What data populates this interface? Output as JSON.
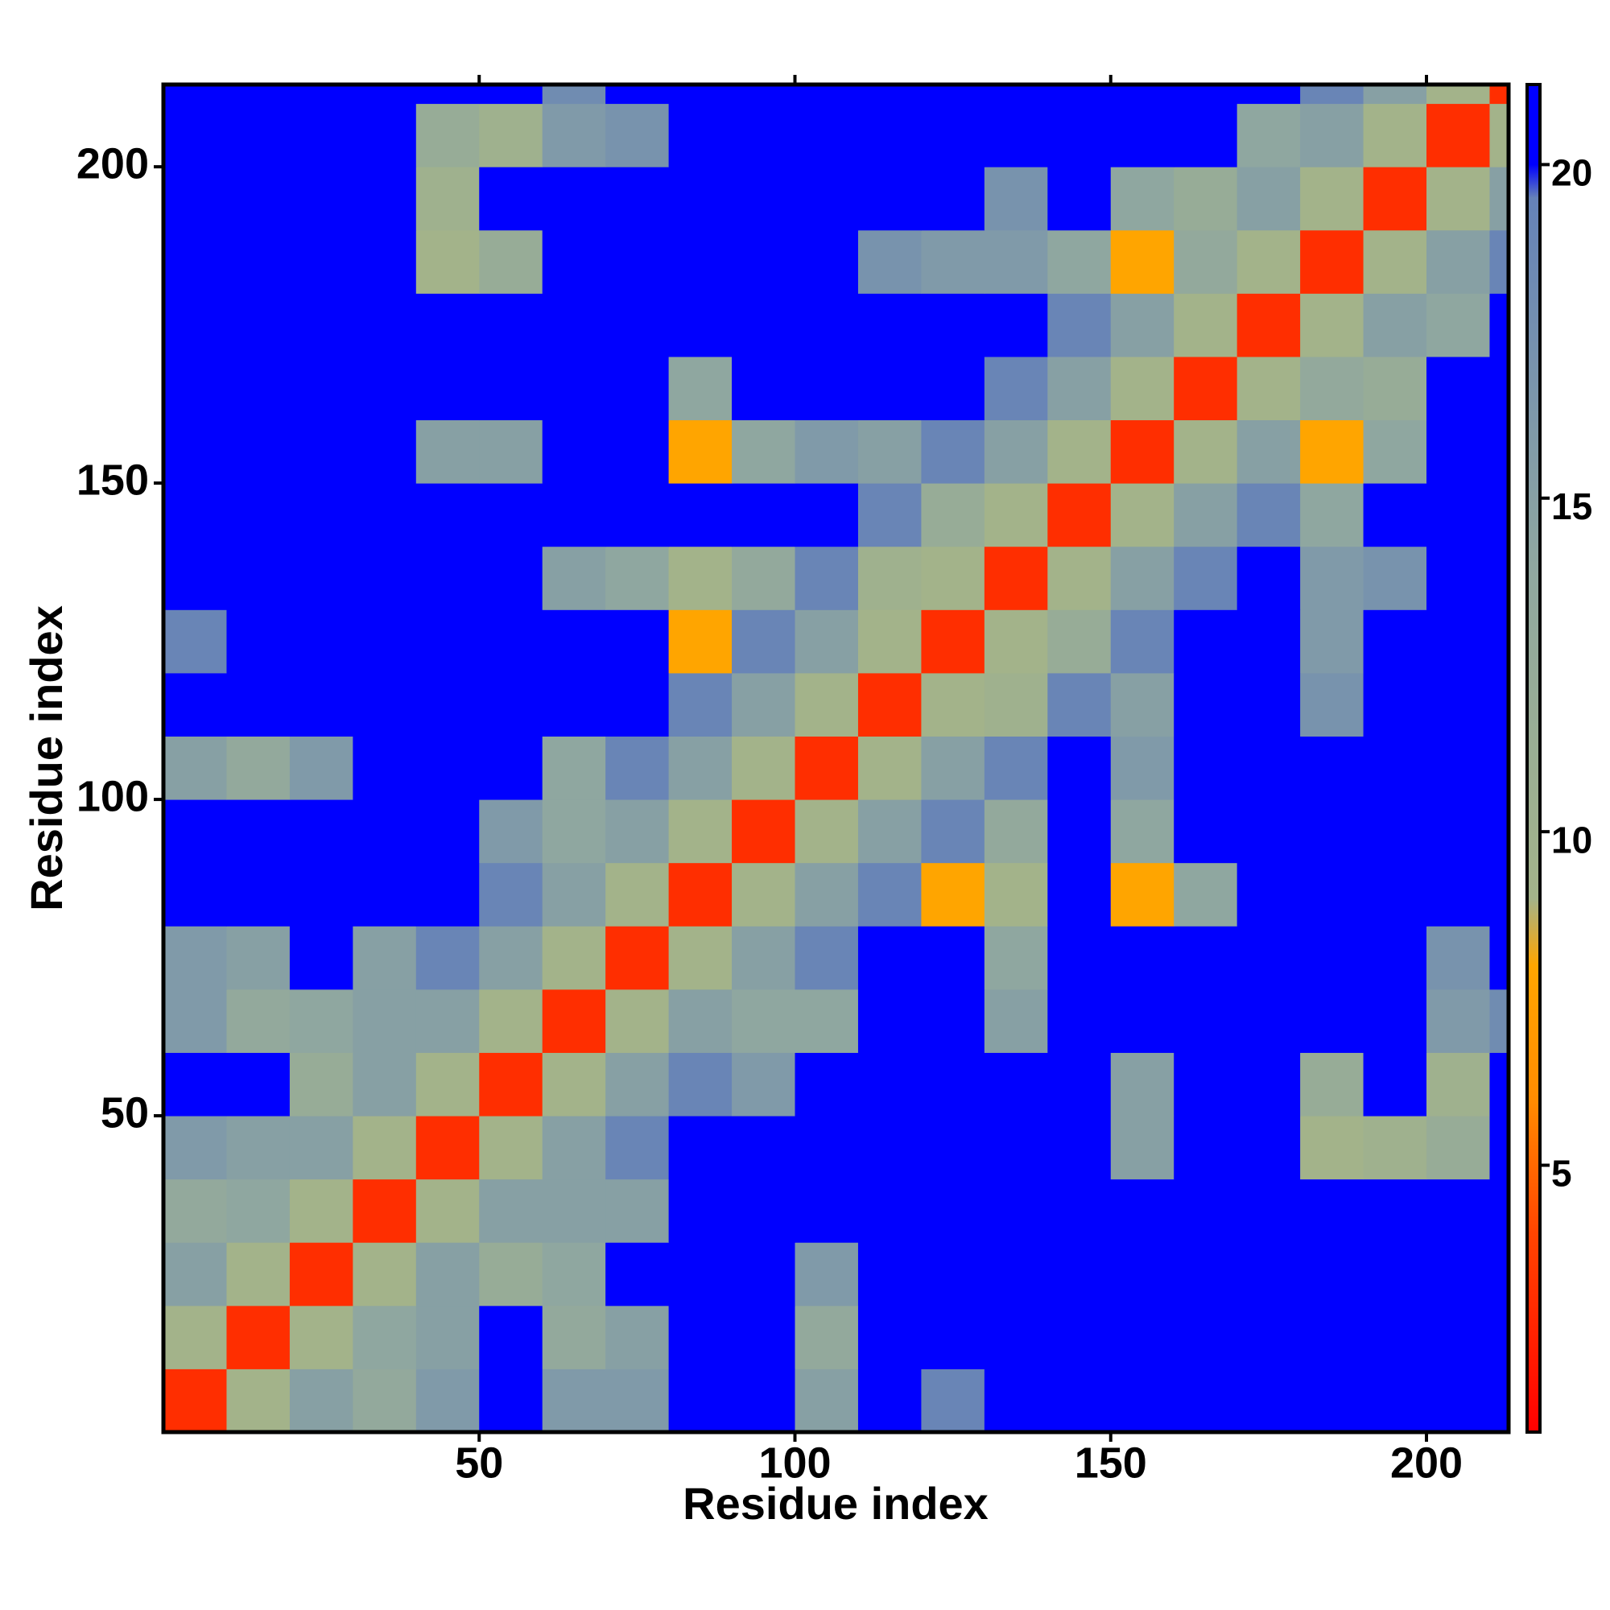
{
  "chart_data": {
    "type": "heatmap",
    "xlabel": "Residue index",
    "ylabel": "Residue index",
    "x_bins": [
      0,
      10,
      20,
      30,
      40,
      50,
      60,
      70,
      80,
      90,
      100,
      110,
      120,
      130,
      140,
      150,
      160,
      170,
      180,
      190,
      200,
      210,
      213
    ],
    "y_bins": [
      0,
      10,
      20,
      30,
      40,
      50,
      60,
      70,
      80,
      90,
      100,
      110,
      120,
      130,
      140,
      150,
      160,
      170,
      180,
      190,
      200,
      210,
      213
    ],
    "values": [
      [
        3,
        9,
        15,
        13,
        16,
        21,
        16,
        16,
        21,
        21,
        15,
        21,
        19,
        21,
        21,
        21,
        21,
        21,
        21,
        21,
        21,
        21
      ],
      [
        9,
        3,
        9,
        14,
        15,
        21,
        13,
        15,
        21,
        21,
        13,
        21,
        21,
        21,
        21,
        21,
        21,
        21,
        21,
        21,
        21,
        21
      ],
      [
        15,
        9,
        3,
        9,
        15,
        12,
        14,
        21,
        21,
        21,
        16,
        21,
        21,
        21,
        21,
        21,
        21,
        21,
        21,
        21,
        21,
        21
      ],
      [
        13,
        14,
        9,
        3,
        9,
        15,
        15,
        15,
        21,
        21,
        21,
        21,
        21,
        21,
        21,
        21,
        21,
        21,
        21,
        21,
        21,
        21
      ],
      [
        16,
        15,
        15,
        9,
        3,
        9,
        15,
        19,
        21,
        21,
        21,
        21,
        21,
        21,
        21,
        15,
        21,
        21,
        9,
        10,
        12,
        21
      ],
      [
        21,
        21,
        12,
        15,
        9,
        3,
        9,
        15,
        19,
        16,
        21,
        21,
        21,
        21,
        21,
        15,
        21,
        21,
        12,
        21,
        10,
        21
      ],
      [
        16,
        13,
        14,
        15,
        15,
        9,
        3,
        9,
        15,
        14,
        14,
        21,
        21,
        15,
        21,
        21,
        21,
        21,
        21,
        21,
        16,
        18
      ],
      [
        16,
        15,
        21,
        15,
        19,
        15,
        9,
        3,
        9,
        15,
        19,
        21,
        21,
        14,
        21,
        21,
        21,
        21,
        21,
        21,
        17,
        21
      ],
      [
        21,
        21,
        21,
        21,
        21,
        19,
        15,
        9,
        3,
        9,
        15,
        19,
        8,
        9,
        21,
        8,
        14,
        21,
        21,
        21,
        21,
        21
      ],
      [
        21,
        21,
        21,
        21,
        21,
        16,
        14,
        15,
        9,
        3,
        9,
        15,
        19,
        13,
        21,
        14,
        21,
        21,
        21,
        21,
        21,
        21
      ],
      [
        15,
        13,
        16,
        21,
        21,
        21,
        14,
        19,
        15,
        9,
        3,
        9,
        15,
        19,
        21,
        16,
        21,
        21,
        21,
        21,
        21,
        21
      ],
      [
        21,
        21,
        21,
        21,
        21,
        21,
        21,
        21,
        19,
        15,
        9,
        3,
        9,
        10,
        19,
        15,
        21,
        21,
        17,
        21,
        21,
        21
      ],
      [
        19,
        21,
        21,
        21,
        21,
        21,
        21,
        21,
        8,
        19,
        15,
        9,
        3,
        9,
        12,
        19,
        21,
        21,
        16,
        21,
        21,
        21
      ],
      [
        21,
        21,
        21,
        21,
        21,
        21,
        15,
        14,
        9,
        13,
        19,
        10,
        9,
        3,
        9,
        15,
        19,
        21,
        16,
        17,
        21,
        21
      ],
      [
        21,
        21,
        21,
        21,
        21,
        21,
        21,
        21,
        21,
        21,
        21,
        19,
        12,
        9,
        3,
        9,
        15,
        19,
        14,
        21,
        21,
        21
      ],
      [
        21,
        21,
        21,
        21,
        15,
        15,
        21,
        21,
        8,
        14,
        16,
        15,
        19,
        15,
        9,
        3,
        9,
        15,
        8,
        14,
        21,
        21
      ],
      [
        21,
        21,
        21,
        21,
        21,
        21,
        21,
        21,
        14,
        21,
        21,
        21,
        21,
        19,
        15,
        9,
        3,
        9,
        13,
        12,
        21,
        21
      ],
      [
        21,
        21,
        21,
        21,
        21,
        21,
        21,
        21,
        21,
        21,
        21,
        21,
        21,
        21,
        19,
        15,
        9,
        3,
        9,
        15,
        14,
        21
      ],
      [
        21,
        21,
        21,
        21,
        9,
        12,
        21,
        21,
        21,
        21,
        21,
        17,
        16,
        16,
        14,
        8,
        13,
        9,
        3,
        9,
        15,
        19
      ],
      [
        21,
        21,
        21,
        21,
        10,
        21,
        21,
        21,
        21,
        21,
        21,
        21,
        21,
        17,
        21,
        14,
        12,
        15,
        9,
        3,
        9,
        15
      ],
      [
        21,
        21,
        21,
        21,
        12,
        10,
        16,
        17,
        21,
        21,
        21,
        21,
        21,
        21,
        21,
        21,
        21,
        14,
        15,
        9,
        3,
        9
      ],
      [
        21,
        21,
        21,
        21,
        21,
        21,
        18,
        21,
        21,
        21,
        21,
        21,
        21,
        21,
        21,
        21,
        21,
        21,
        19,
        15,
        9,
        3
      ]
    ],
    "xlim": [
      0,
      213
    ],
    "ylim": [
      0,
      213
    ],
    "xticks": [
      50,
      100,
      150,
      200
    ],
    "yticks": [
      50,
      100,
      150,
      200
    ],
    "clim": [
      1,
      21.2
    ],
    "cticks": [
      5,
      10,
      15,
      20
    ],
    "colorscale": [
      [
        1,
        "#ff0000"
      ],
      [
        4,
        "#ff4500"
      ],
      [
        6,
        "#ff8c00"
      ],
      [
        8,
        "#ffa500"
      ],
      [
        9,
        "#a3b38a"
      ],
      [
        14,
        "#8fa7a0"
      ],
      [
        19.5,
        "#6582b8"
      ],
      [
        20,
        "#0000ff"
      ]
    ]
  }
}
